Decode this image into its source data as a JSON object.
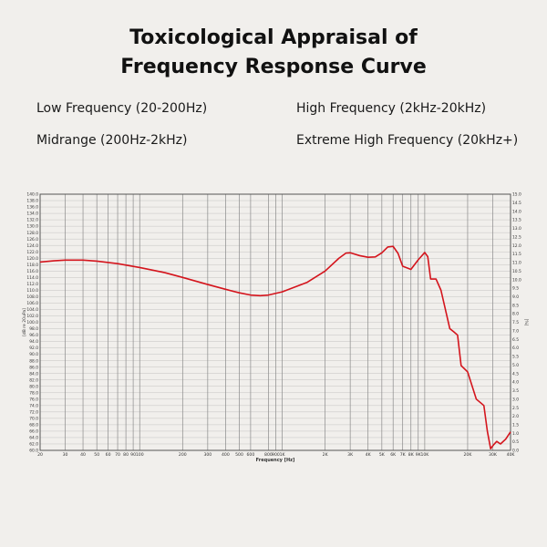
{
  "title_line1": "Toxicological Appraisal of",
  "title_line2": "Frequency Response Curve",
  "bands": {
    "low": "Low Frequency (20-200Hz)",
    "high": "High Frequency (2kHz-20kHz)",
    "mid": "Midrange (200Hz-2kHz)",
    "xhigh": "Extreme High Frequency (20kHz+)"
  },
  "chart_data": {
    "type": "line",
    "xlabel": "Frequency  [Hz]",
    "ylabel": "[dB re 20uPa]",
    "y2label": "[%]",
    "xscale": "log",
    "xlim": [
      20,
      40000
    ],
    "ylim": [
      60,
      140
    ],
    "y2lim": [
      0,
      15
    ],
    "grid": true,
    "line_color": "#d4141c",
    "grid_color": "#8a8a8a",
    "x_ticks": [
      {
        "v": 20,
        "l": "20"
      },
      {
        "v": 30,
        "l": "30"
      },
      {
        "v": 40,
        "l": "40"
      },
      {
        "v": 50,
        "l": "50"
      },
      {
        "v": 60,
        "l": "60"
      },
      {
        "v": 70,
        "l": "70"
      },
      {
        "v": 80,
        "l": "80"
      },
      {
        "v": 90,
        "l": "90"
      },
      {
        "v": 100,
        "l": "100"
      },
      {
        "v": 200,
        "l": "200"
      },
      {
        "v": 300,
        "l": "300"
      },
      {
        "v": 400,
        "l": "400"
      },
      {
        "v": 500,
        "l": "500"
      },
      {
        "v": 600,
        "l": "600"
      },
      {
        "v": 800,
        "l": "800"
      },
      {
        "v": 900,
        "l": "900"
      },
      {
        "v": 1000,
        "l": "1K"
      },
      {
        "v": 2000,
        "l": "2K"
      },
      {
        "v": 3000,
        "l": "3K"
      },
      {
        "v": 4000,
        "l": "4K"
      },
      {
        "v": 5000,
        "l": "5K"
      },
      {
        "v": 6000,
        "l": "6K"
      },
      {
        "v": 7000,
        "l": "7K"
      },
      {
        "v": 8000,
        "l": "8K"
      },
      {
        "v": 9000,
        "l": "9K"
      },
      {
        "v": 10000,
        "l": "10K"
      },
      {
        "v": 20000,
        "l": "20K"
      },
      {
        "v": 30000,
        "l": "30K"
      },
      {
        "v": 40000,
        "l": "40K"
      }
    ],
    "y_ticks": [
      "60.0",
      "62.0",
      "64.0",
      "66.0",
      "68.0",
      "70.0",
      "72.0",
      "74.0",
      "76.0",
      "78.0",
      "80.0",
      "82.0",
      "84.0",
      "86.0",
      "88.0",
      "90.0",
      "92.0",
      "94.0",
      "96.0",
      "98.0",
      "100.0",
      "102.0",
      "104.0",
      "106.0",
      "108.0",
      "110.0",
      "112.0",
      "114.0",
      "116.0",
      "118.0",
      "120.0",
      "122.0",
      "124.0",
      "126.0",
      "128.0",
      "130.0",
      "132.0",
      "134.0",
      "136.0",
      "138.0",
      "140.0"
    ],
    "y2_ticks": [
      "0.0",
      "0.5",
      "1.0",
      "1.5",
      "2.0",
      "2.5",
      "3.0",
      "3.5",
      "4.0",
      "4.5",
      "5.0",
      "5.5",
      "6.0",
      "6.5",
      "7.0",
      "7.5",
      "8.0",
      "8.5",
      "9.0",
      "9.5",
      "10.0",
      "10.5",
      "11.0",
      "11.5",
      "12.0",
      "12.5",
      "13.0",
      "13.5",
      "14.0",
      "14.5",
      "15.0"
    ],
    "series": [
      {
        "points": [
          [
            20,
            118.8
          ],
          [
            25,
            119.2
          ],
          [
            30,
            119.4
          ],
          [
            40,
            119.4
          ],
          [
            50,
            119.1
          ],
          [
            70,
            118.3
          ],
          [
            100,
            117.1
          ],
          [
            150,
            115.5
          ],
          [
            200,
            114.0
          ],
          [
            300,
            111.8
          ],
          [
            400,
            110.3
          ],
          [
            500,
            109.2
          ],
          [
            600,
            108.5
          ],
          [
            700,
            108.3
          ],
          [
            800,
            108.5
          ],
          [
            1000,
            109.5
          ],
          [
            1500,
            112.5
          ],
          [
            2000,
            116.0
          ],
          [
            2500,
            120.0
          ],
          [
            2800,
            121.6
          ],
          [
            3000,
            121.7
          ],
          [
            3500,
            120.8
          ],
          [
            4000,
            120.3
          ],
          [
            4500,
            120.4
          ],
          [
            5000,
            121.7
          ],
          [
            5500,
            123.5
          ],
          [
            6000,
            123.7
          ],
          [
            6500,
            121.5
          ],
          [
            7000,
            117.5
          ],
          [
            8000,
            116.5
          ],
          [
            9000,
            119.5
          ],
          [
            10000,
            121.8
          ],
          [
            10500,
            120.5
          ],
          [
            11000,
            113.5
          ],
          [
            12000,
            113.5
          ],
          [
            13000,
            110.0
          ],
          [
            15000,
            98.0
          ],
          [
            16000,
            97.0
          ],
          [
            17000,
            96.0
          ],
          [
            18000,
            86.5
          ],
          [
            20000,
            84.5
          ],
          [
            23000,
            76.0
          ],
          [
            26000,
            74.0
          ],
          [
            27500,
            66.0
          ],
          [
            29000,
            60.5
          ],
          [
            30500,
            61.8
          ],
          [
            32000,
            62.8
          ],
          [
            34000,
            62.0
          ],
          [
            37000,
            63.5
          ],
          [
            40000,
            65.8
          ]
        ]
      }
    ]
  }
}
